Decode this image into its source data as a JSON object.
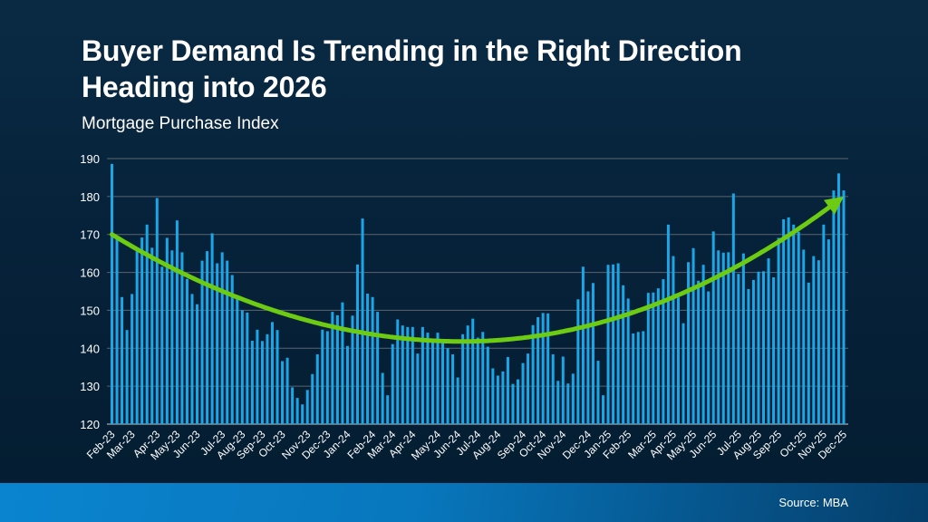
{
  "header": {
    "title_line1": "Buyer Demand Is Trending in the Right Direction",
    "title_line2": "Heading into 2026",
    "subtitle": "Mortgage Purchase Index"
  },
  "footer": {
    "source": "Source: MBA"
  },
  "colors": {
    "bar": "#1aa7e8",
    "trend_arrow": "#6ccb12",
    "grid": "#5b6570",
    "background": "#06223a",
    "footer": "#0a7cc4"
  },
  "chart_data": {
    "type": "bar",
    "title": "",
    "xlabel": "",
    "ylabel": "",
    "ylim": [
      120,
      190
    ],
    "yticks": [
      120,
      130,
      140,
      150,
      160,
      170,
      180,
      190
    ],
    "grid": true,
    "legend": "none",
    "frequency": "weekly",
    "month_labels": [
      "Feb-23",
      "Mar-23",
      "Apr-23",
      "May-23",
      "Jun-23",
      "Jul-23",
      "Aug-23",
      "Sep-23",
      "Oct-23",
      "Nov-23",
      "Dec-23",
      "Jan-24",
      "Feb-24",
      "Mar-24",
      "Apr-24",
      "May-24",
      "Jun-24",
      "Jul-24",
      "Aug-24",
      "Sep-24",
      "Oct-24",
      "Nov-24",
      "Dec-24",
      "Jan-25",
      "Feb-25",
      "Mar-25",
      "Apr-25",
      "May-25",
      "Jun-25",
      "Jul-25",
      "Aug-25",
      "Sep-25",
      "Oct-25",
      "Nov-25",
      "Dec-25"
    ],
    "values": [
      188.6,
      169.0,
      153.5,
      144.8,
      154.3,
      166.0,
      169.2,
      172.6,
      166.5,
      179.6,
      161.5,
      169.1,
      165.8,
      173.7,
      165.3,
      158.3,
      154.3,
      151.6,
      163.1,
      165.6,
      170.3,
      162.4,
      165.3,
      163.1,
      159.3,
      154.0,
      150.0,
      149.4,
      142.0,
      144.9,
      141.9,
      143.7,
      146.9,
      144.8,
      136.6,
      137.5,
      129.7,
      126.9,
      125.2,
      129.0,
      133.2,
      138.4,
      144.9,
      144.5,
      149.6,
      148.7,
      152.1,
      140.6,
      148.6,
      162.1,
      174.2,
      154.4,
      153.5,
      149.6,
      133.5,
      127.6,
      141.1,
      147.6,
      146.0,
      145.6,
      145.6,
      138.6,
      145.6,
      144.1,
      142.5,
      144.1,
      141.6,
      140.0,
      138.4,
      132.3,
      143.7,
      146.0,
      147.8,
      142.8,
      144.3,
      140.4,
      134.7,
      132.8,
      133.9,
      137.7,
      130.6,
      131.8,
      136.1,
      138.6,
      146.1,
      148.2,
      149.3,
      149.2,
      138.4,
      131.4,
      137.8,
      130.7,
      133.3,
      152.9,
      161.5,
      155.0,
      157.2,
      136.7,
      127.6,
      162.0,
      162.1,
      162.4,
      156.6,
      153.1,
      143.9,
      144.3,
      144.5,
      154.6,
      154.7,
      155.8,
      158.2,
      172.6,
      164.3,
      153.4,
      146.6,
      162.7,
      166.4,
      157.8,
      162.0,
      155.0,
      170.8,
      165.8,
      165.2,
      165.3,
      180.8,
      159.6,
      165.0,
      155.6,
      158.0,
      160.2,
      160.3,
      163.7,
      158.7,
      169.1,
      174.0,
      174.5,
      172.6,
      170.7,
      166.0,
      157.3,
      164.3,
      163.2,
      172.6,
      168.7,
      181.6,
      186.1,
      181.6
    ],
    "trend_arrow": {
      "start": 170,
      "low": 141.8,
      "end": 180
    }
  }
}
